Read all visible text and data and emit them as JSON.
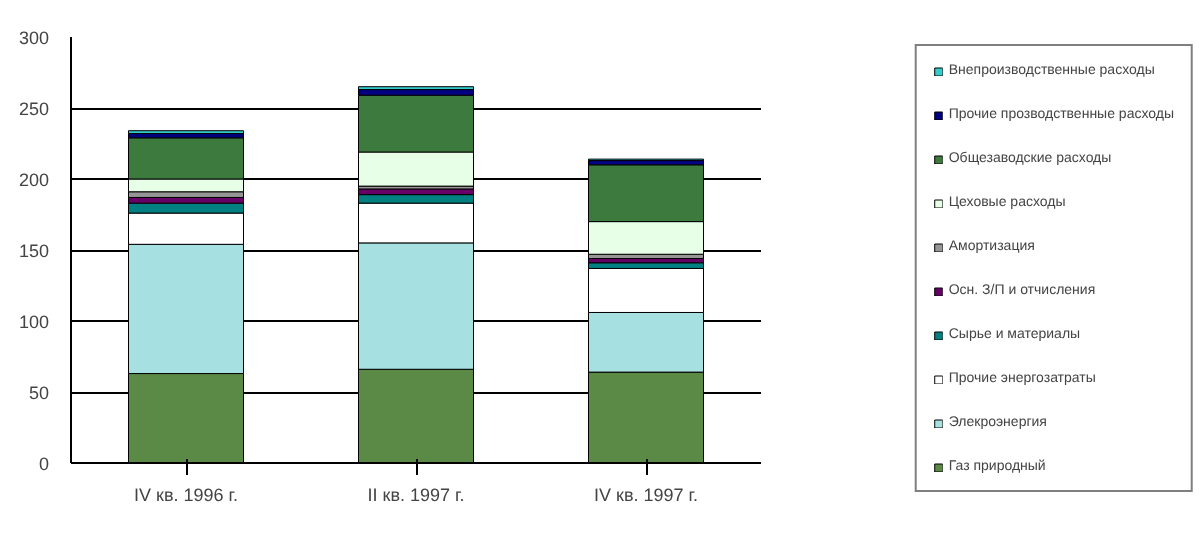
{
  "chart_data": {
    "type": "bar",
    "stacked": true,
    "categories": [
      "IV кв. 1996 г.",
      "II кв. 1997 г.",
      "IV кв. 1997 г."
    ],
    "ylim": [
      0,
      300
    ],
    "yticks": [
      0,
      50,
      100,
      150,
      200,
      250,
      300
    ],
    "grid": "y",
    "legend": "right",
    "series": [
      {
        "name": "Газ природный",
        "color": "#5a8a45",
        "values": [
          63,
          66,
          64
        ]
      },
      {
        "name": "Элекроэнергия",
        "color": "#a6e0e0",
        "values": [
          91,
          89,
          42
        ]
      },
      {
        "name": "Прочие энергозатраты",
        "color": "#ffffff",
        "values": [
          22,
          28,
          31
        ]
      },
      {
        "name": "Сырье и материалы",
        "color": "#008080",
        "values": [
          7,
          6,
          4
        ]
      },
      {
        "name": "Осн. З/П и отчисления",
        "color": "#660066",
        "values": [
          4,
          4,
          3
        ]
      },
      {
        "name": "Амортизация",
        "color": "#969696",
        "values": [
          4,
          2,
          3
        ]
      },
      {
        "name": "Цеховые расходы",
        "color": "#e6ffe6",
        "values": [
          9,
          24,
          23
        ]
      },
      {
        "name": "Общезаводские расходы",
        "color": "#3d7a3d",
        "values": [
          29,
          40,
          40
        ]
      },
      {
        "name": "Прочие прозводственные расходы",
        "color": "#000080",
        "values": [
          3,
          4,
          3
        ]
      },
      {
        "name": "Внепроизводственные расходы",
        "color": "#33cccc",
        "values": [
          2,
          2,
          1
        ]
      }
    ]
  }
}
